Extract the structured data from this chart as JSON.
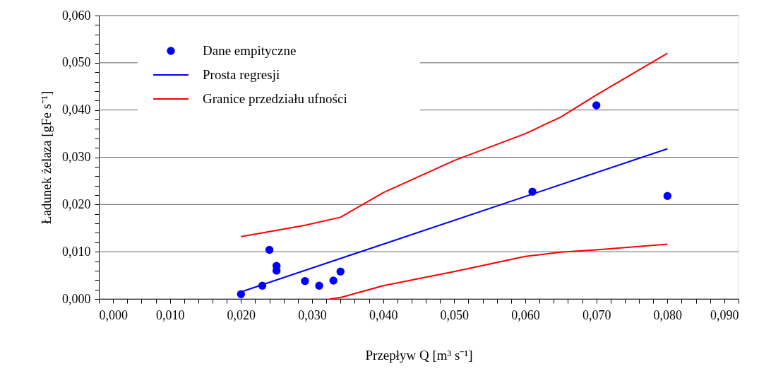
{
  "chart_data": {
    "type": "scatter",
    "xlabel": "Przepływ Q [m³ s⁻¹]",
    "ylabel": "Ładunek żelaza [gFe s⁻¹]",
    "xlim": [
      0,
      0.09
    ],
    "ylim": [
      0,
      0.06
    ],
    "xticks": [
      {
        "value": 0,
        "label": "0,000"
      },
      {
        "value": 0.002,
        "label": null
      },
      {
        "value": 0.004,
        "label": null
      },
      {
        "value": 0.006,
        "label": null
      },
      {
        "value": 0.008,
        "label": null
      },
      {
        "value": 0.01,
        "label": "0,010"
      },
      {
        "value": 0.012,
        "label": null
      },
      {
        "value": 0.014,
        "label": null
      },
      {
        "value": 0.016,
        "label": null
      },
      {
        "value": 0.018,
        "label": null
      },
      {
        "value": 0.02,
        "label": "0,020"
      },
      {
        "value": 0.022,
        "label": null
      },
      {
        "value": 0.024,
        "label": null
      },
      {
        "value": 0.026,
        "label": null
      },
      {
        "value": 0.028,
        "label": null
      },
      {
        "value": 0.03,
        "label": "0,030"
      },
      {
        "value": 0.032,
        "label": null
      },
      {
        "value": 0.034,
        "label": null
      },
      {
        "value": 0.036,
        "label": null
      },
      {
        "value": 0.038,
        "label": null
      },
      {
        "value": 0.04,
        "label": "0,040"
      },
      {
        "value": 0.042,
        "label": null
      },
      {
        "value": 0.044,
        "label": null
      },
      {
        "value": 0.046,
        "label": null
      },
      {
        "value": 0.048,
        "label": null
      },
      {
        "value": 0.05,
        "label": "0,050"
      },
      {
        "value": 0.052,
        "label": null
      },
      {
        "value": 0.054,
        "label": null
      },
      {
        "value": 0.056,
        "label": null
      },
      {
        "value": 0.058,
        "label": null
      },
      {
        "value": 0.06,
        "label": "0,060"
      },
      {
        "value": 0.062,
        "label": null
      },
      {
        "value": 0.064,
        "label": null
      },
      {
        "value": 0.066,
        "label": null
      },
      {
        "value": 0.068,
        "label": null
      },
      {
        "value": 0.07,
        "label": "0,070"
      },
      {
        "value": 0.072,
        "label": null
      },
      {
        "value": 0.074,
        "label": null
      },
      {
        "value": 0.076,
        "label": null
      },
      {
        "value": 0.078,
        "label": null
      },
      {
        "value": 0.08,
        "label": "0,080"
      },
      {
        "value": 0.082,
        "label": null
      },
      {
        "value": 0.084,
        "label": null
      },
      {
        "value": 0.086,
        "label": null
      },
      {
        "value": 0.088,
        "label": null
      },
      {
        "value": 0.09,
        "label": "0,090"
      }
    ],
    "yticks": [
      {
        "value": 0,
        "label": "0,000"
      },
      {
        "value": 0.002,
        "label": null
      },
      {
        "value": 0.004,
        "label": null
      },
      {
        "value": 0.006,
        "label": null
      },
      {
        "value": 0.008,
        "label": null
      },
      {
        "value": 0.01,
        "label": "0,010"
      },
      {
        "value": 0.012,
        "label": null
      },
      {
        "value": 0.014,
        "label": null
      },
      {
        "value": 0.016,
        "label": null
      },
      {
        "value": 0.018,
        "label": null
      },
      {
        "value": 0.02,
        "label": "0,020"
      },
      {
        "value": 0.022,
        "label": null
      },
      {
        "value": 0.024,
        "label": null
      },
      {
        "value": 0.026,
        "label": null
      },
      {
        "value": 0.028,
        "label": null
      },
      {
        "value": 0.03,
        "label": "0,030"
      },
      {
        "value": 0.032,
        "label": null
      },
      {
        "value": 0.034,
        "label": null
      },
      {
        "value": 0.036,
        "label": null
      },
      {
        "value": 0.038,
        "label": null
      },
      {
        "value": 0.04,
        "label": "0,040"
      },
      {
        "value": 0.042,
        "label": null
      },
      {
        "value": 0.044,
        "label": null
      },
      {
        "value": 0.046,
        "label": null
      },
      {
        "value": 0.048,
        "label": null
      },
      {
        "value": 0.05,
        "label": "0,050"
      },
      {
        "value": 0.052,
        "label": null
      },
      {
        "value": 0.054,
        "label": null
      },
      {
        "value": 0.056,
        "label": null
      },
      {
        "value": 0.058,
        "label": null
      },
      {
        "value": 0.06,
        "label": "0,060"
      }
    ],
    "grid": "y",
    "legend": "top left",
    "series": [
      {
        "name": "Dane empityczne",
        "marker": "circle",
        "color": "#0000ff",
        "x": [
          0.02,
          0.023,
          0.024,
          0.025,
          0.025,
          0.029,
          0.031,
          0.033,
          0.034,
          0.061,
          0.07,
          0.08
        ],
        "values": [
          0.001,
          0.0028,
          0.0104,
          0.007,
          0.006,
          0.0038,
          0.0028,
          0.0039,
          0.0058,
          0.0227,
          0.041,
          0.0218
        ]
      },
      {
        "name": "Prosta regresji",
        "type": "line",
        "color": "#0000ff",
        "x": [
          0.02,
          0.08
        ],
        "values": [
          0.0015,
          0.0318
        ]
      },
      {
        "name": "Granice przedziału ufności",
        "type": "line",
        "color": "#ff0000",
        "x": [
          0.02,
          0.023,
          0.029,
          0.034,
          0.04,
          0.05,
          0.06,
          0.065,
          0.07,
          0.08
        ],
        "values": [
          0.0132,
          0.014,
          0.0156,
          0.0173,
          0.0225,
          0.0293,
          0.035,
          0.0385,
          0.0432,
          0.052
        ]
      },
      {
        "type": "line",
        "color": "#ff0000",
        "x": [
          0.0325,
          0.034,
          0.04,
          0.05,
          0.06,
          0.065,
          0.07,
          0.08
        ],
        "values": [
          0.0,
          0.0003,
          0.0028,
          0.0058,
          0.009,
          0.0099,
          0.0104,
          0.0116
        ]
      }
    ]
  }
}
